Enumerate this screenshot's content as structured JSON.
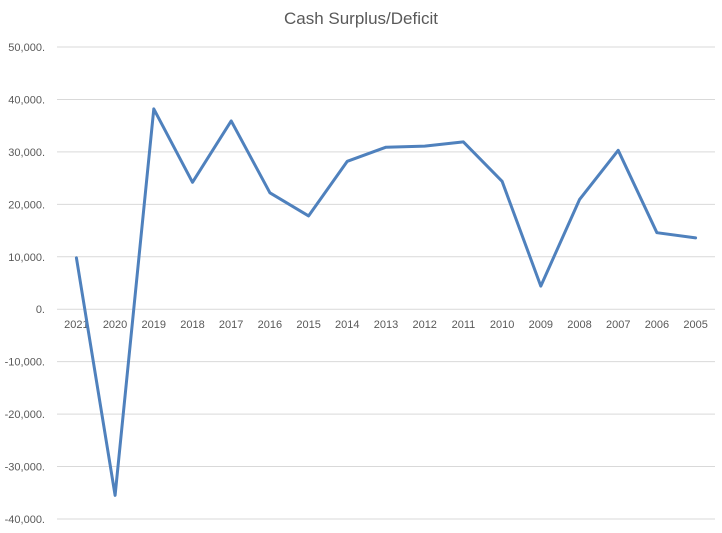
{
  "chart_data": {
    "type": "line",
    "title": "Cash Surplus/Deficit",
    "xlabel": "",
    "ylabel": "",
    "categories": [
      "2021",
      "2020",
      "2019",
      "2018",
      "2017",
      "2016",
      "2015",
      "2014",
      "2013",
      "2012",
      "2011",
      "2010",
      "2009",
      "2008",
      "2007",
      "2006",
      "2005"
    ],
    "series": [
      {
        "values": [
          9800,
          -35500,
          38200,
          24200,
          35900,
          22200,
          17800,
          28200,
          30900,
          31100,
          31900,
          24400,
          4400,
          20900,
          30300,
          14600,
          13600
        ],
        "color": "#4f81bd"
      }
    ],
    "ylim": [
      -40000,
      50000
    ],
    "yticks": [
      50000,
      40000,
      30000,
      20000,
      10000,
      0,
      -10000,
      -20000,
      -30000,
      -40000
    ],
    "ytick_labels": [
      "50,000.",
      "40,000.",
      "30,000.",
      "20,000.",
      "10,000.",
      "0.",
      "-10,000.",
      "-20,000.",
      "-30,000.",
      "-40,000."
    ],
    "grid": true,
    "legend": "none"
  }
}
